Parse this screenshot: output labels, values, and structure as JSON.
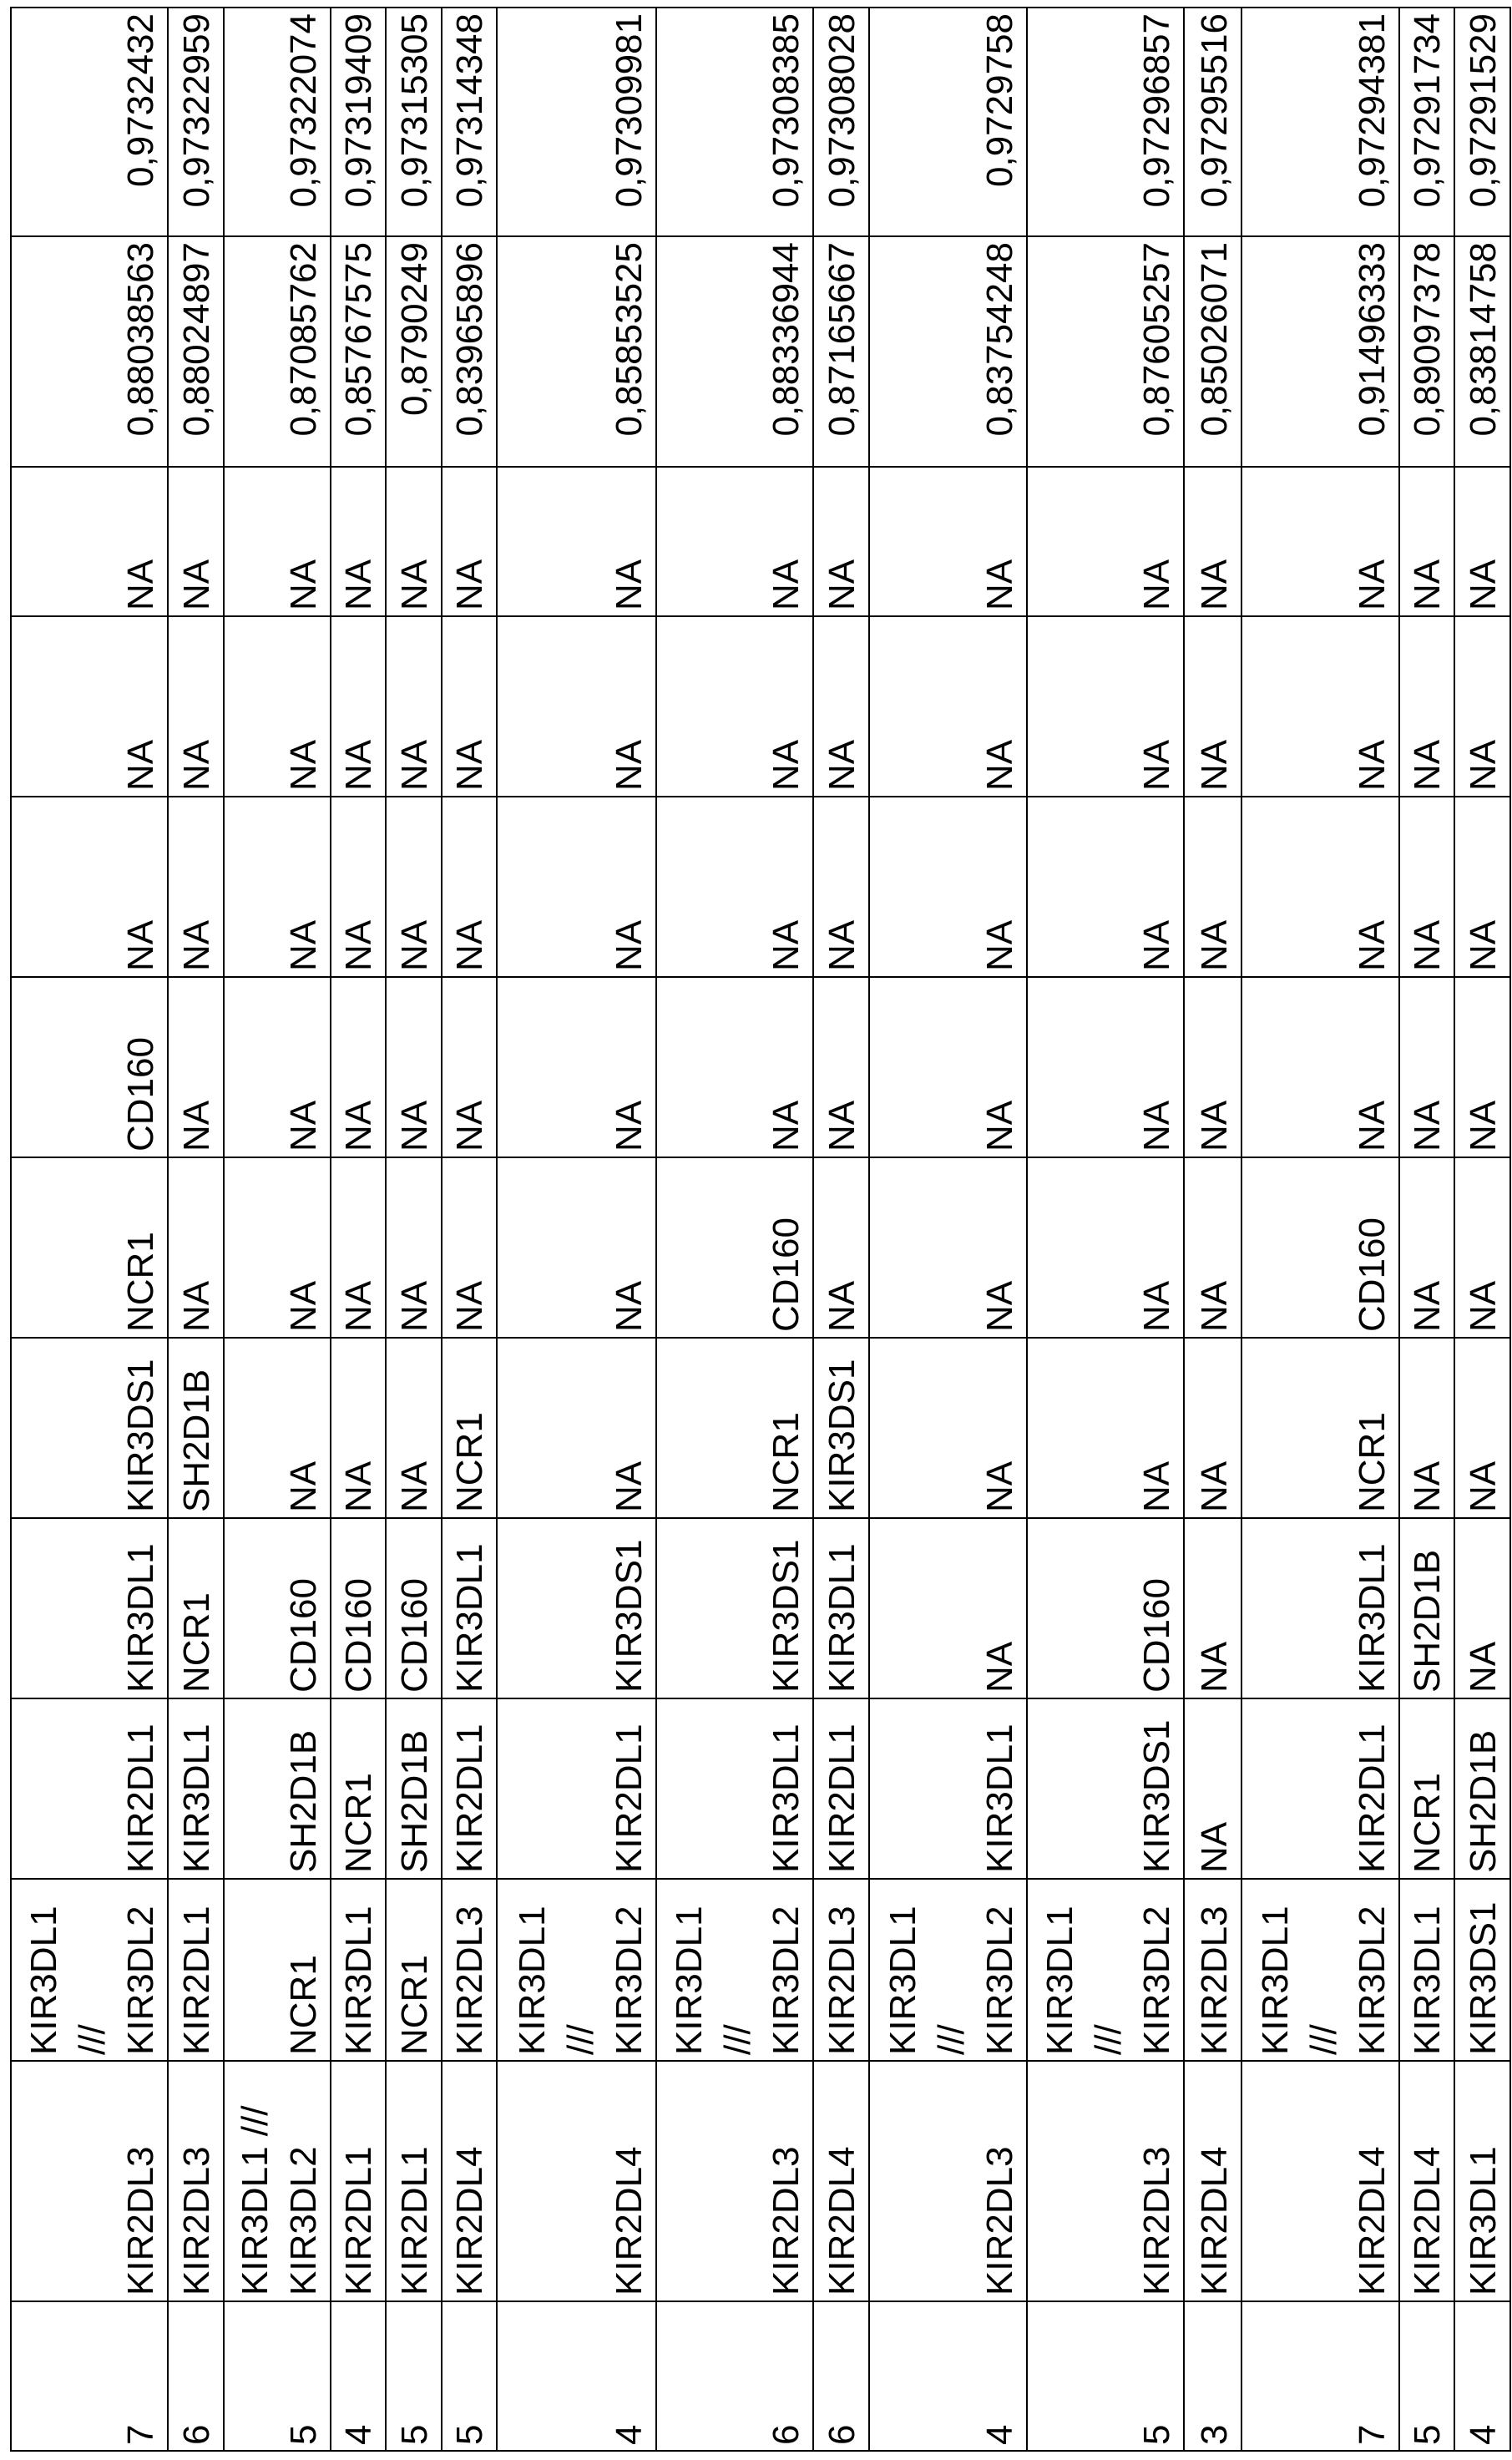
{
  "table": {
    "rows": [
      {
        "count": "7",
        "genes": [
          "KIR2DL3",
          "KIR3DL1 /// KIR3DL2",
          "KIR2DL1",
          "KIR3DL1",
          "KIR3DS1",
          "NCR1",
          "CD160",
          "NA",
          "NA",
          "NA"
        ],
        "v1": "0,88038563",
        "v2": "0,9732432"
      },
      {
        "count": "6",
        "genes": [
          "KIR2DL3",
          "KIR2DL1",
          "KIR3DL1",
          "NCR1",
          "SH2D1B",
          "NA",
          "NA",
          "NA",
          "NA",
          "NA"
        ],
        "v1": "0,88024897",
        "v2": "0,97322959"
      },
      {
        "count": "5",
        "genes": [
          "KIR3DL1 /// KIR3DL2",
          "NCR1",
          "SH2D1B",
          "CD160",
          "NA",
          "NA",
          "NA",
          "NA",
          "NA",
          "NA"
        ],
        "v1": "0,87085762",
        "v2": "0,97322074"
      },
      {
        "count": "4",
        "genes": [
          "KIR2DL1",
          "KIR3DL1",
          "NCR1",
          "CD160",
          "NA",
          "NA",
          "NA",
          "NA",
          "NA",
          "NA"
        ],
        "v1": "0,85767575",
        "v2": "0,97319409"
      },
      {
        "count": "5",
        "genes": [
          "KIR2DL1",
          "NCR1",
          "SH2D1B",
          "CD160",
          "NA",
          "NA",
          "NA",
          "NA",
          "NA",
          "NA"
        ],
        "v1": "0,8790249",
        "v2": "0,97315305"
      },
      {
        "count": "5",
        "genes": [
          "KIR2DL4",
          "KIR2DL3",
          "KIR2DL1",
          "KIR3DL1",
          "NCR1",
          "NA",
          "NA",
          "NA",
          "NA",
          "NA"
        ],
        "v1": "0,83965896",
        "v2": "0,97314348"
      },
      {
        "count": "4",
        "genes": [
          "KIR2DL4",
          "KIR3DL1 /// KIR3DL2",
          "KIR2DL1",
          "KIR3DS1",
          "NA",
          "NA",
          "NA",
          "NA",
          "NA",
          "NA"
        ],
        "v1": "0,85853525",
        "v2": "0,97309981"
      },
      {
        "count": "6",
        "genes": [
          "KIR2DL3",
          "KIR3DL1 /// KIR3DL2",
          "KIR3DL1",
          "KIR3DS1",
          "NCR1",
          "CD160",
          "NA",
          "NA",
          "NA",
          "NA"
        ],
        "v1": "0,88336944",
        "v2": "0,97308385"
      },
      {
        "count": "6",
        "genes": [
          "KIR2DL4",
          "KIR2DL3",
          "KIR2DL1",
          "KIR3DL1",
          "KIR3DS1",
          "NA",
          "NA",
          "NA",
          "NA",
          "NA"
        ],
        "v1": "0,87165667",
        "v2": "0,97308028"
      },
      {
        "count": "4",
        "genes": [
          "KIR2DL3",
          "KIR3DL1 /// KIR3DL2",
          "KIR3DL1",
          "NA",
          "NA",
          "NA",
          "NA",
          "NA",
          "NA",
          "NA"
        ],
        "v1": "0,83754248",
        "v2": "0,9729758"
      },
      {
        "count": "5",
        "genes": [
          "KIR2DL3",
          "KIR3DL1 /// KIR3DL2",
          "KIR3DS1",
          "CD160",
          "NA",
          "NA",
          "NA",
          "NA",
          "NA",
          "NA"
        ],
        "v1": "0,87605257",
        "v2": "0,97296857"
      },
      {
        "count": "3",
        "genes": [
          "KIR2DL4",
          "KIR2DL3",
          "NA",
          "NA",
          "NA",
          "NA",
          "NA",
          "NA",
          "NA",
          "NA"
        ],
        "v1": "0,85026071",
        "v2": "0,97295516"
      },
      {
        "count": "7",
        "genes": [
          "KIR2DL4",
          "KIR3DL1 /// KIR3DL2",
          "KIR2DL1",
          "KIR3DL1",
          "NCR1",
          "CD160",
          "NA",
          "NA",
          "NA",
          "NA"
        ],
        "v1": "0,91496333",
        "v2": "0,97294381"
      },
      {
        "count": "5",
        "genes": [
          "KIR2DL4",
          "KIR3DL1",
          "NCR1",
          "SH2D1B",
          "NA",
          "NA",
          "NA",
          "NA",
          "NA",
          "NA"
        ],
        "v1": "0,89097378",
        "v2": "0,97291734"
      },
      {
        "count": "4",
        "genes": [
          "KIR3DL1",
          "KIR3DS1",
          "SH2D1B",
          "NA",
          "NA",
          "NA",
          "NA",
          "NA",
          "NA",
          "NA"
        ],
        "v1": "0,83814758",
        "v2": "0,97291529"
      }
    ]
  }
}
